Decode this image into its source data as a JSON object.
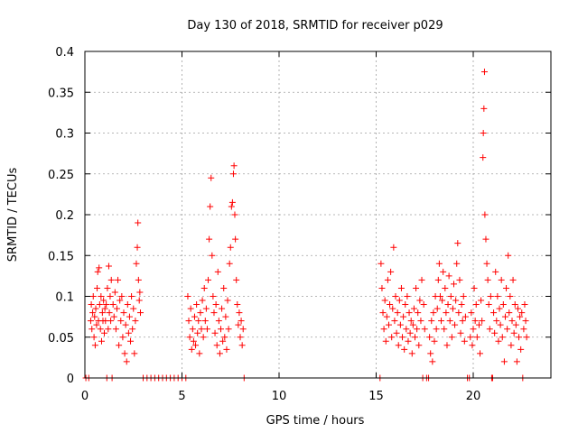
{
  "chart_data": {
    "type": "scatter",
    "title": "Day 130 of 2018, SRMTID for receiver p029",
    "xlabel": "GPS time / hours",
    "ylabel": "SRMTID / TECUs",
    "xlim": [
      0,
      24
    ],
    "ylim": [
      0,
      0.4
    ],
    "grid": true,
    "legend": "none",
    "marker": "+",
    "series_color": "#ff0000",
    "x_ticks": [
      {
        "value": 0,
        "label": "0"
      },
      {
        "value": 5,
        "label": "5"
      },
      {
        "value": 10,
        "label": "10"
      },
      {
        "value": 15,
        "label": "15"
      },
      {
        "value": 20,
        "label": "20"
      }
    ],
    "y_ticks": [
      {
        "value": 0,
        "label": "0"
      },
      {
        "value": 0.05,
        "label": "0.05"
      },
      {
        "value": 0.1,
        "label": "0.1"
      },
      {
        "value": 0.15,
        "label": "0.15"
      },
      {
        "value": 0.2,
        "label": "0.2"
      },
      {
        "value": 0.25,
        "label": "0.25"
      },
      {
        "value": 0.3,
        "label": "0.3"
      },
      {
        "value": 0.35,
        "label": "0.35"
      },
      {
        "value": 0.4,
        "label": "0.4"
      }
    ],
    "series": [
      {
        "name": "SRMTID",
        "points": [
          [
            0.05,
            0
          ],
          [
            0.2,
            0
          ],
          [
            0.3,
            0.07
          ],
          [
            0.33,
            0.09
          ],
          [
            0.36,
            0.06
          ],
          [
            0.4,
            0.08
          ],
          [
            0.43,
            0.1
          ],
          [
            0.47,
            0.05
          ],
          [
            0.5,
            0.075
          ],
          [
            0.53,
            0.04
          ],
          [
            0.56,
            0.085
          ],
          [
            0.6,
            0.065
          ],
          [
            0.63,
            0.11
          ],
          [
            0.66,
            0.13
          ],
          [
            0.7,
            0.07
          ],
          [
            0.73,
            0.135
          ],
          [
            0.76,
            0.09
          ],
          [
            0.8,
            0.06
          ],
          [
            0.83,
            0.1
          ],
          [
            0.86,
            0.045
          ],
          [
            0.9,
            0.08
          ],
          [
            0.93,
            0.07
          ],
          [
            0.96,
            0.095
          ],
          [
            1.0,
            0.055
          ],
          [
            1.03,
            0.085
          ],
          [
            1.06,
            0.07
          ],
          [
            1.1,
            0.09
          ],
          [
            1.13,
            0
          ],
          [
            1.16,
            0.11
          ],
          [
            1.2,
            0.06
          ],
          [
            1.23,
            0.137
          ],
          [
            1.26,
            0.08
          ],
          [
            1.3,
            0.1
          ],
          [
            1.33,
            0.07
          ],
          [
            1.36,
            0.12
          ],
          [
            1.4,
            0
          ],
          [
            1.45,
            0.09
          ],
          [
            1.5,
            0.075
          ],
          [
            1.55,
            0.105
          ],
          [
            1.6,
            0.06
          ],
          [
            1.65,
            0.085
          ],
          [
            1.7,
            0.12
          ],
          [
            1.75,
            0.04
          ],
          [
            1.8,
            0.095
          ],
          [
            1.85,
            0.07
          ],
          [
            1.9,
            0.1
          ],
          [
            1.95,
            0.05
          ],
          [
            2.0,
            0.08
          ],
          [
            2.05,
            0.03
          ],
          [
            2.1,
            0.065
          ],
          [
            2.15,
            0.02
          ],
          [
            2.2,
            0.09
          ],
          [
            2.25,
            0.055
          ],
          [
            2.3,
            0.075
          ],
          [
            2.35,
            0.045
          ],
          [
            2.4,
            0.1
          ],
          [
            2.45,
            0.06
          ],
          [
            2.5,
            0.085
          ],
          [
            2.55,
            0.03
          ],
          [
            2.6,
            0.07
          ],
          [
            2.65,
            0.14
          ],
          [
            2.7,
            0.16
          ],
          [
            2.73,
            0.19
          ],
          [
            2.76,
            0.12
          ],
          [
            2.8,
            0.095
          ],
          [
            2.83,
            0.105
          ],
          [
            2.86,
            0.08
          ],
          [
            3.0,
            0
          ],
          [
            3.2,
            0
          ],
          [
            3.4,
            0
          ],
          [
            3.6,
            0
          ],
          [
            3.8,
            0
          ],
          [
            4.0,
            0
          ],
          [
            4.2,
            0
          ],
          [
            4.4,
            0
          ],
          [
            4.6,
            0
          ],
          [
            4.8,
            0
          ],
          [
            5.0,
            0
          ],
          [
            5.2,
            0
          ],
          [
            5.3,
            0.1
          ],
          [
            5.35,
            0.07
          ],
          [
            5.4,
            0.05
          ],
          [
            5.45,
            0.085
          ],
          [
            5.5,
            0.035
          ],
          [
            5.55,
            0.06
          ],
          [
            5.6,
            0.045
          ],
          [
            5.65,
            0.075
          ],
          [
            5.7,
            0.04
          ],
          [
            5.75,
            0.09
          ],
          [
            5.8,
            0.055
          ],
          [
            5.85,
            0.07
          ],
          [
            5.9,
            0.03
          ],
          [
            5.95,
            0.08
          ],
          [
            6.0,
            0.06
          ],
          [
            6.05,
            0.095
          ],
          [
            6.1,
            0.05
          ],
          [
            6.15,
            0.11
          ],
          [
            6.2,
            0.07
          ],
          [
            6.25,
            0.085
          ],
          [
            6.3,
            0.06
          ],
          [
            6.35,
            0.12
          ],
          [
            6.4,
            0.17
          ],
          [
            6.45,
            0.21
          ],
          [
            6.5,
            0.245
          ],
          [
            6.55,
            0.15
          ],
          [
            6.6,
            0.1
          ],
          [
            6.65,
            0.08
          ],
          [
            6.7,
            0.055
          ],
          [
            6.75,
            0.09
          ],
          [
            6.8,
            0.04
          ],
          [
            6.85,
            0.13
          ],
          [
            6.9,
            0.07
          ],
          [
            6.95,
            0.03
          ],
          [
            7.0,
            0.06
          ],
          [
            7.05,
            0.085
          ],
          [
            7.1,
            0.045
          ],
          [
            7.15,
            0.11
          ],
          [
            7.2,
            0.05
          ],
          [
            7.25,
            0.075
          ],
          [
            7.3,
            0.035
          ],
          [
            7.35,
            0.095
          ],
          [
            7.4,
            0.06
          ],
          [
            7.45,
            0.14
          ],
          [
            7.5,
            0.16
          ],
          [
            7.55,
            0.21
          ],
          [
            7.6,
            0.215
          ],
          [
            7.65,
            0.25
          ],
          [
            7.68,
            0.26
          ],
          [
            7.72,
            0.2
          ],
          [
            7.75,
            0.17
          ],
          [
            7.8,
            0.12
          ],
          [
            7.85,
            0.09
          ],
          [
            7.9,
            0.065
          ],
          [
            7.95,
            0.08
          ],
          [
            8.0,
            0.05
          ],
          [
            8.05,
            0.07
          ],
          [
            8.1,
            0.04
          ],
          [
            8.15,
            0.06
          ],
          [
            8.2,
            0
          ],
          [
            15.2,
            0
          ],
          [
            15.25,
            0.14
          ],
          [
            15.3,
            0.11
          ],
          [
            15.35,
            0.08
          ],
          [
            15.4,
            0.06
          ],
          [
            15.45,
            0.095
          ],
          [
            15.5,
            0.045
          ],
          [
            15.55,
            0.075
          ],
          [
            15.6,
            0.12
          ],
          [
            15.65,
            0.065
          ],
          [
            15.7,
            0.09
          ],
          [
            15.75,
            0.13
          ],
          [
            15.8,
            0.05
          ],
          [
            15.85,
            0.085
          ],
          [
            15.9,
            0.16
          ],
          [
            15.95,
            0.07
          ],
          [
            16.0,
            0.1
          ],
          [
            16.05,
            0.055
          ],
          [
            16.1,
            0.08
          ],
          [
            16.15,
            0.04
          ],
          [
            16.2,
            0.095
          ],
          [
            16.25,
            0.065
          ],
          [
            16.3,
            0.11
          ],
          [
            16.35,
            0.05
          ],
          [
            16.4,
            0.075
          ],
          [
            16.45,
            0.035
          ],
          [
            16.5,
            0.09
          ],
          [
            16.55,
            0.06
          ],
          [
            16.6,
            0.1
          ],
          [
            16.65,
            0.045
          ],
          [
            16.7,
            0.08
          ],
          [
            16.75,
            0.055
          ],
          [
            16.8,
            0.07
          ],
          [
            16.85,
            0.03
          ],
          [
            16.9,
            0.065
          ],
          [
            16.95,
            0.085
          ],
          [
            17.0,
            0.05
          ],
          [
            17.05,
            0.11
          ],
          [
            17.1,
            0.06
          ],
          [
            17.15,
            0.08
          ],
          [
            17.2,
            0.04
          ],
          [
            17.25,
            0.095
          ],
          [
            17.3,
            0.07
          ],
          [
            17.35,
            0.12
          ],
          [
            17.4,
            0
          ],
          [
            17.45,
            0.09
          ],
          [
            17.5,
            0.06
          ],
          [
            17.6,
            0
          ],
          [
            17.7,
            0
          ],
          [
            17.75,
            0.05
          ],
          [
            17.8,
            0.03
          ],
          [
            17.85,
            0.07
          ],
          [
            17.9,
            0.02
          ],
          [
            17.95,
            0.08
          ],
          [
            18.0,
            0.045
          ],
          [
            18.05,
            0.1
          ],
          [
            18.1,
            0.06
          ],
          [
            18.15,
            0.085
          ],
          [
            18.2,
            0.12
          ],
          [
            18.25,
            0.14
          ],
          [
            18.3,
            0.1
          ],
          [
            18.35,
            0.07
          ],
          [
            18.4,
            0.095
          ],
          [
            18.45,
            0.13
          ],
          [
            18.5,
            0.06
          ],
          [
            18.55,
            0.11
          ],
          [
            18.6,
            0.08
          ],
          [
            18.65,
            0.04
          ],
          [
            18.7,
            0.09
          ],
          [
            18.75,
            0.125
          ],
          [
            18.8,
            0.07
          ],
          [
            18.85,
            0.1
          ],
          [
            18.9,
            0.05
          ],
          [
            18.95,
            0.085
          ],
          [
            19.0,
            0.115
          ],
          [
            19.05,
            0.065
          ],
          [
            19.1,
            0.095
          ],
          [
            19.15,
            0.14
          ],
          [
            19.2,
            0.165
          ],
          [
            19.25,
            0.08
          ],
          [
            19.3,
            0.12
          ],
          [
            19.35,
            0.055
          ],
          [
            19.4,
            0.09
          ],
          [
            19.45,
            0.07
          ],
          [
            19.5,
            0.1
          ],
          [
            19.55,
            0.045
          ],
          [
            19.6,
            0.075
          ],
          [
            19.7,
            0
          ],
          [
            19.8,
            0
          ],
          [
            19.85,
            0.05
          ],
          [
            19.9,
            0.08
          ],
          [
            19.95,
            0.04
          ],
          [
            20.0,
            0.06
          ],
          [
            20.05,
            0.11
          ],
          [
            20.1,
            0.07
          ],
          [
            20.15,
            0.09
          ],
          [
            20.2,
            0.05
          ],
          [
            20.3,
            0.065
          ],
          [
            20.35,
            0.03
          ],
          [
            20.4,
            0.095
          ],
          [
            20.45,
            0.07
          ],
          [
            20.5,
            0.27
          ],
          [
            20.52,
            0.3
          ],
          [
            20.55,
            0.33
          ],
          [
            20.58,
            0.375
          ],
          [
            20.6,
            0.2
          ],
          [
            20.65,
            0.17
          ],
          [
            20.7,
            0.14
          ],
          [
            20.75,
            0.12
          ],
          [
            20.8,
            0.09
          ],
          [
            20.85,
            0.06
          ],
          [
            20.9,
            0.1
          ],
          [
            20.95,
            0
          ],
          [
            21.0,
            0
          ],
          [
            21.05,
            0.08
          ],
          [
            21.1,
            0.055
          ],
          [
            21.15,
            0.13
          ],
          [
            21.2,
            0.07
          ],
          [
            21.25,
            0.1
          ],
          [
            21.3,
            0.045
          ],
          [
            21.35,
            0.085
          ],
          [
            21.4,
            0.065
          ],
          [
            21.45,
            0.12
          ],
          [
            21.5,
            0.05
          ],
          [
            21.55,
            0.09
          ],
          [
            21.6,
            0.02
          ],
          [
            21.65,
            0.075
          ],
          [
            21.7,
            0.11
          ],
          [
            21.75,
            0.06
          ],
          [
            21.8,
            0.15
          ],
          [
            21.85,
            0.08
          ],
          [
            21.9,
            0.1
          ],
          [
            21.95,
            0.04
          ],
          [
            22.0,
            0.07
          ],
          [
            22.05,
            0.12
          ],
          [
            22.1,
            0.055
          ],
          [
            22.15,
            0.09
          ],
          [
            22.2,
            0.065
          ],
          [
            22.25,
            0.02
          ],
          [
            22.3,
            0.085
          ],
          [
            22.35,
            0.05
          ],
          [
            22.4,
            0.075
          ],
          [
            22.45,
            0.035
          ],
          [
            22.5,
            0.08
          ],
          [
            22.55,
            0
          ],
          [
            22.6,
            0.06
          ],
          [
            22.65,
            0.09
          ],
          [
            22.7,
            0.07
          ],
          [
            22.75,
            0.05
          ]
        ]
      }
    ]
  }
}
